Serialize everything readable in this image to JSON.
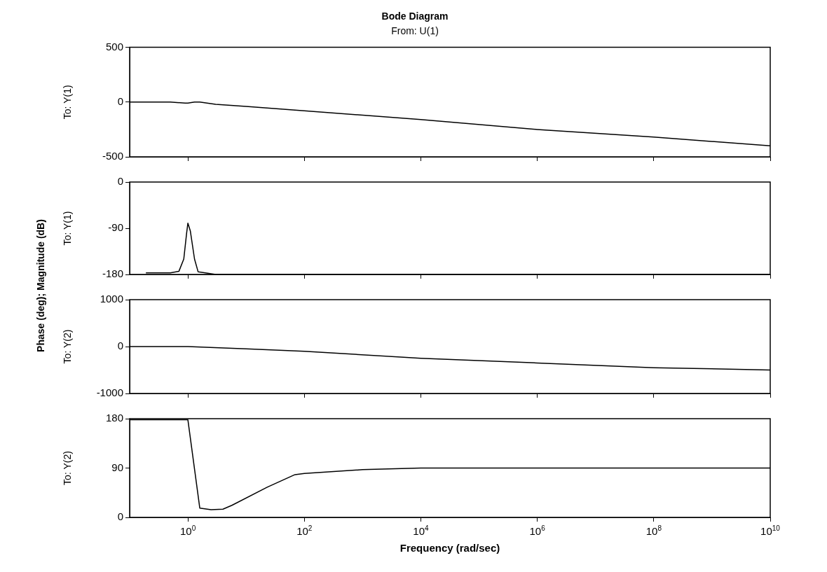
{
  "chart_data": [
    {
      "type": "line",
      "title": "Bode Diagram",
      "subtitle": "From: U(1)",
      "ylabel": "To: Y(1)",
      "annotations": [
        "Phase (deg); Magnitude (dB)"
      ],
      "log": "x",
      "xlim": [
        0.1,
        10000000000
      ],
      "xticks": [
        {
          "value": 1,
          "label": null
        },
        {
          "value": 100,
          "label": null
        },
        {
          "value": 10000,
          "label": null
        },
        {
          "value": 1000000,
          "label": null
        },
        {
          "value": 100000000,
          "label": null
        },
        {
          "value": 10000000000,
          "label": null
        }
      ],
      "ylim": [
        -500,
        500
      ],
      "yticks": [
        -500,
        0,
        500
      ],
      "tick_labels": "y",
      "series": [
        {
          "color": "#000000",
          "x": [
            0.1,
            0.5,
            0.9,
            1,
            1.3,
            1.6,
            3,
            10,
            100,
            10000,
            1000000,
            100000000,
            10000000000
          ],
          "values": [
            0,
            0,
            -10,
            -10,
            0,
            0,
            -20,
            -40,
            -80,
            -160,
            -250,
            -320,
            -400
          ]
        }
      ]
    },
    {
      "type": "line",
      "ylabel": "To: Y(1)",
      "log": "x",
      "xlim": [
        0.1,
        10000000000
      ],
      "xticks": [
        {
          "value": 1,
          "label": null
        },
        {
          "value": 100,
          "label": null
        },
        {
          "value": 10000,
          "label": null
        },
        {
          "value": 1000000,
          "label": null
        },
        {
          "value": 100000000,
          "label": null
        },
        {
          "value": 10000000000,
          "label": null
        }
      ],
      "ylim": [
        -180,
        0
      ],
      "yticks": [
        -180,
        -90,
        0
      ],
      "tick_labels": "y",
      "series": [
        {
          "color": "#000000",
          "x": [
            0.19,
            0.5,
            0.7,
            0.85,
            0.95,
            1,
            1.1,
            1.3,
            1.5,
            2,
            3,
            10000000000
          ],
          "values": [
            -177,
            -177,
            -174,
            -150,
            -100,
            -80,
            -95,
            -150,
            -175,
            -177,
            -180,
            -180
          ]
        }
      ]
    },
    {
      "type": "line",
      "ylabel": "To: Y(2)",
      "log": "x",
      "xlim": [
        0.1,
        10000000000
      ],
      "xticks": [
        {
          "value": 1,
          "label": null
        },
        {
          "value": 100,
          "label": null
        },
        {
          "value": 10000,
          "label": null
        },
        {
          "value": 1000000,
          "label": null
        },
        {
          "value": 100000000,
          "label": null
        },
        {
          "value": 10000000000,
          "label": null
        }
      ],
      "ylim": [
        -1000,
        1000
      ],
      "yticks": [
        -1000,
        0,
        1000
      ],
      "tick_labels": "y",
      "series": [
        {
          "color": "#000000",
          "x": [
            0.1,
            1,
            10,
            100,
            10000,
            1000000,
            100000000,
            10000000000
          ],
          "values": [
            0,
            0,
            -50,
            -100,
            -250,
            -350,
            -450,
            -500
          ]
        }
      ]
    },
    {
      "type": "line",
      "ylabel": "To: Y(2)",
      "xlabel": "Frequency (rad/sec)",
      "log": "x",
      "xlim": [
        0.1,
        10000000000
      ],
      "xticks": [
        {
          "value": 1,
          "label": "10$^{0}$"
        },
        {
          "value": 100,
          "label": "10$^{2}$"
        },
        {
          "value": 10000,
          "label": "10$^{4}$"
        },
        {
          "value": 1000000,
          "label": "10$^{6}$"
        },
        {
          "value": 100000000,
          "label": "10$^{8}$"
        },
        {
          "value": 10000000000,
          "label": "10$^{10}$"
        }
      ],
      "ylim": [
        0,
        180
      ],
      "yticks": [
        0,
        90,
        180
      ],
      "series": [
        {
          "color": "#000000",
          "x": [
            0.1,
            1,
            1.6,
            2.5,
            4,
            5.7,
            23,
            69,
            100,
            1000,
            10000,
            10000000000
          ],
          "values": [
            178,
            178,
            17,
            14,
            15,
            22,
            55,
            78,
            80,
            87,
            90,
            90
          ]
        }
      ]
    }
  ]
}
